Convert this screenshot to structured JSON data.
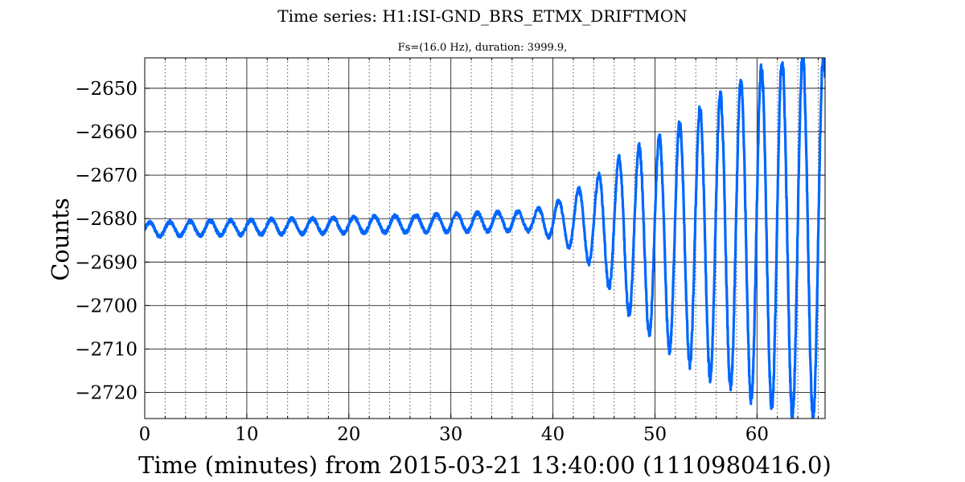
{
  "chart_data": {
    "type": "line",
    "title": "Time series:  H1:ISI-GND_BRS_ETMX_DRIFTMON",
    "subtitle": "Fs=(16.0 Hz), duration: 3999.9,",
    "xlabel": "Time (minutes) from 2015-03-21 13:40:00 (1110980416.0)",
    "ylabel": "Counts",
    "xlim": [
      0,
      66.67
    ],
    "ylim": [
      -2726,
      -2643
    ],
    "x_ticks": [
      0,
      10,
      20,
      30,
      40,
      50,
      60
    ],
    "y_ticks": [
      -2650,
      -2660,
      -2670,
      -2680,
      -2690,
      -2700,
      -2710,
      -2720
    ],
    "x_minor_step": 2,
    "grid": true,
    "line_color": "#0066ff",
    "series": [
      {
        "x_start": 0,
        "x_end": 66.67,
        "oscillation_period_min": 2.0,
        "envelope": [
          {
            "t": 0,
            "center": -2682.5,
            "amplitude": 1.6
          },
          {
            "t": 20,
            "center": -2681.5,
            "amplitude": 1.8
          },
          {
            "t": 38,
            "center": -2680.5,
            "amplitude": 2.3
          },
          {
            "t": 41,
            "center": -2680.5,
            "amplitude": 5
          },
          {
            "t": 44,
            "center": -2681,
            "amplitude": 10
          },
          {
            "t": 47,
            "center": -2683,
            "amplitude": 18
          },
          {
            "t": 50,
            "center": -2685,
            "amplitude": 23
          },
          {
            "t": 55,
            "center": -2685,
            "amplitude": 31
          },
          {
            "t": 60,
            "center": -2684,
            "amplitude": 38
          },
          {
            "t": 63,
            "center": -2684,
            "amplitude": 41
          },
          {
            "t": 66.67,
            "center": -2684,
            "amplitude": 42
          }
        ]
      }
    ]
  }
}
